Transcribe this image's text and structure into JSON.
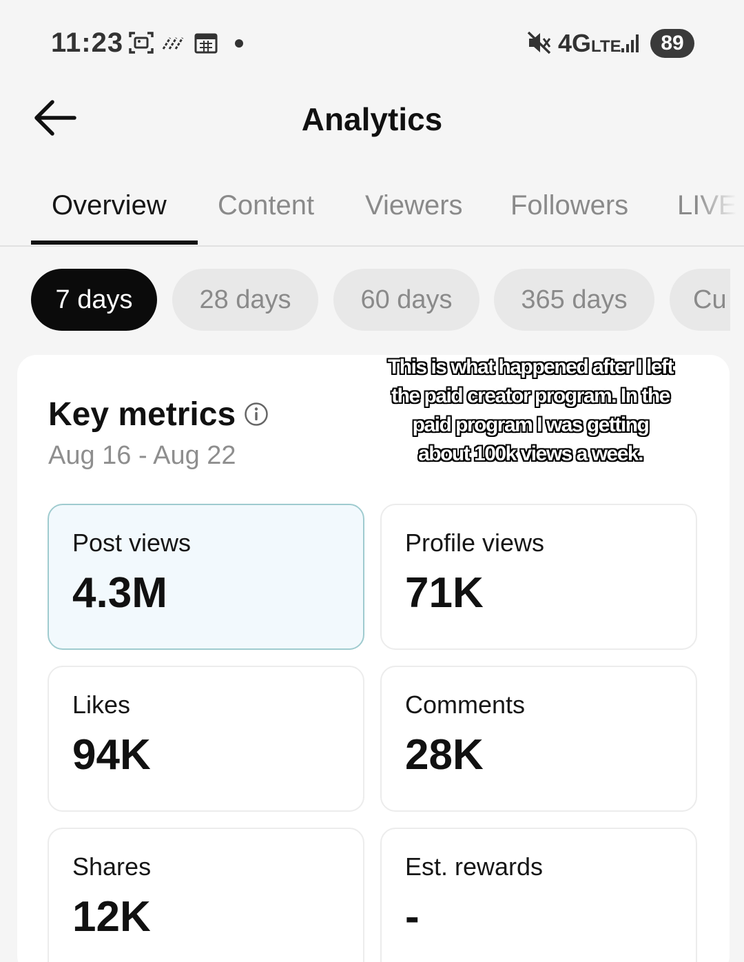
{
  "status_bar": {
    "time": "11:23",
    "network": "4G",
    "network_sub": "LTE",
    "battery": "89",
    "icons": [
      "screenshot-icon",
      "nfc-icon",
      "calendar-icon",
      "mute-icon",
      "signal-icon"
    ]
  },
  "header": {
    "title": "Analytics"
  },
  "tabs": [
    {
      "label": "Overview",
      "active": true
    },
    {
      "label": "Content",
      "active": false
    },
    {
      "label": "Viewers",
      "active": false
    },
    {
      "label": "Followers",
      "active": false
    },
    {
      "label": "LIVE",
      "active": false
    }
  ],
  "ranges": [
    {
      "label": "7 days",
      "active": true
    },
    {
      "label": "28 days",
      "active": false
    },
    {
      "label": "60 days",
      "active": false
    },
    {
      "label": "365 days",
      "active": false
    },
    {
      "label": "Cu",
      "active": false
    }
  ],
  "key_metrics": {
    "title": "Key metrics",
    "date_range": "Aug 16 - Aug 22",
    "items": [
      {
        "label": "Post views",
        "value": "4.3M",
        "highlighted": true
      },
      {
        "label": "Profile views",
        "value": "71K",
        "highlighted": false
      },
      {
        "label": "Likes",
        "value": "94K",
        "highlighted": false
      },
      {
        "label": "Comments",
        "value": "28K",
        "highlighted": false
      },
      {
        "label": "Shares",
        "value": "12K",
        "highlighted": false
      },
      {
        "label": "Est. rewards",
        "value": "-",
        "highlighted": false
      }
    ]
  },
  "overlay_caption": "This is what happened after I left the paid creator program. In the paid program I was getting about 100k views a week.",
  "colors": {
    "background": "#f5f5f5",
    "active_chip": "#0b0b0b",
    "inactive_text": "#8a8a8a",
    "highlight_card_bg": "#f2f9fd",
    "highlight_card_border": "#9fcbcf"
  }
}
